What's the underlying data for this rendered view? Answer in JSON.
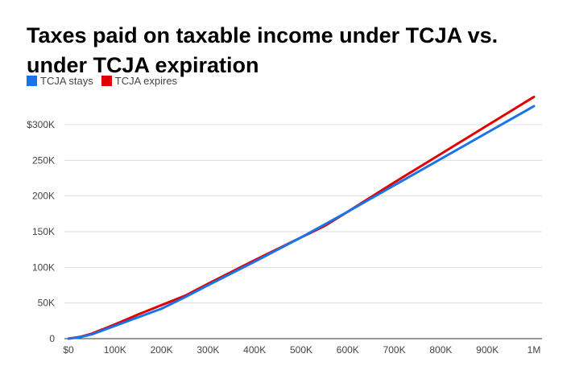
{
  "chart_data": {
    "type": "line",
    "title": "Taxes paid on taxable income under TCJA vs. under TCJA expiration",
    "xlabel": "",
    "ylabel": "",
    "x_ticks": [
      "$0",
      "100K",
      "200K",
      "300K",
      "400K",
      "500K",
      "600K",
      "700K",
      "800K",
      "900K",
      "1M"
    ],
    "y_ticks": [
      "0",
      "50K",
      "100K",
      "150K",
      "200K",
      "250K",
      "$300K"
    ],
    "xlim": [
      0,
      1000000
    ],
    "ylim": [
      0,
      300000
    ],
    "grid": true,
    "legend_position": "top-left",
    "series": [
      {
        "name": "TCJA stays",
        "color": "#1a73e8",
        "x": [
          0,
          25000,
          50000,
          100000,
          150000,
          200000,
          250000,
          300000,
          400000,
          500000,
          550000,
          600000,
          700000,
          800000,
          900000,
          1000000
        ],
        "y": [
          0,
          2000,
          6000,
          18000,
          30000,
          42000,
          58000,
          75000,
          108000,
          142000,
          160000,
          178000,
          215000,
          252000,
          289000,
          326000
        ]
      },
      {
        "name": "TCJA expires",
        "color": "#e00000",
        "x": [
          0,
          25000,
          50000,
          100000,
          150000,
          200000,
          250000,
          300000,
          400000,
          500000,
          550000,
          600000,
          700000,
          800000,
          900000,
          1000000
        ],
        "y": [
          0,
          2500,
          7000,
          20000,
          34000,
          47000,
          60000,
          77000,
          110000,
          142000,
          158000,
          178000,
          219000,
          259000,
          299000,
          339000
        ]
      }
    ]
  }
}
